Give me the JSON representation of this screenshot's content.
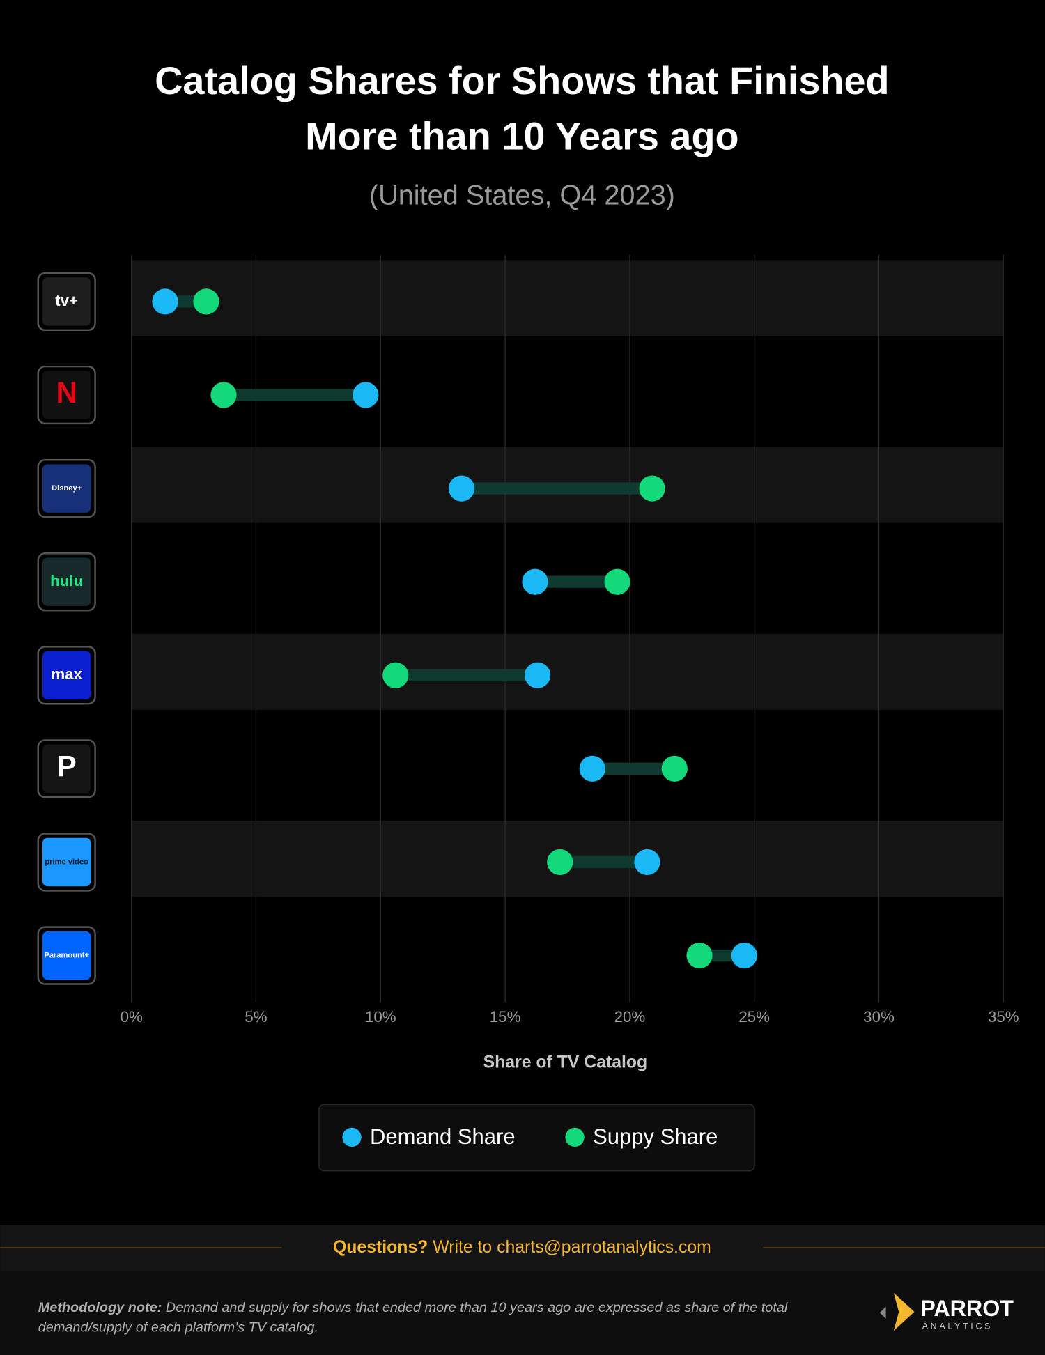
{
  "chart_data": {
    "type": "dumbbell",
    "title": "Catalog Shares for Shows that Finished More than 10 Years ago",
    "subtitle": "(United States, Q4 2023)",
    "x_label": "Share of TV Catalog",
    "categories": [
      "tv+",
      "N",
      "Disney+",
      "hulu",
      "max",
      "P",
      "prime video",
      "Paramount+"
    ],
    "series": [
      {
        "name": "Demand Share",
        "color": "#1ab8f5",
        "values": [
          1.35,
          9.4,
          13.25,
          16.2,
          16.3,
          18.5,
          20.7,
          24.6
        ]
      },
      {
        "name": "Suppy Share",
        "color": "#14d97a",
        "values": [
          3.0,
          3.7,
          20.9,
          19.5,
          10.6,
          21.8,
          17.2,
          22.8
        ]
      }
    ],
    "xlim": [
      0,
      35
    ],
    "xticks": [
      {
        "value": 0,
        "label": "0%"
      },
      {
        "value": 5,
        "label": "5%"
      },
      {
        "value": 10,
        "label": "10%"
      },
      {
        "value": 15,
        "label": "15%"
      },
      {
        "value": 20,
        "label": "20%"
      },
      {
        "value": 25,
        "label": "25%"
      },
      {
        "value": 30,
        "label": "30%"
      },
      {
        "value": 35,
        "label": "35%"
      }
    ],
    "grid": true,
    "legend": "bottom"
  },
  "footer": {
    "question_label": "Questions?",
    "question_text": "Write to charts@parrotanalytics.com",
    "note_label": "Methodology note:",
    "note_text": "Demand and supply for shows that ended more than 10 years ago are expressed as share of the total demand/supply of each platform’s TV catalog.",
    "brand": "PARROT",
    "brand_sub": "ANALYTICS"
  }
}
